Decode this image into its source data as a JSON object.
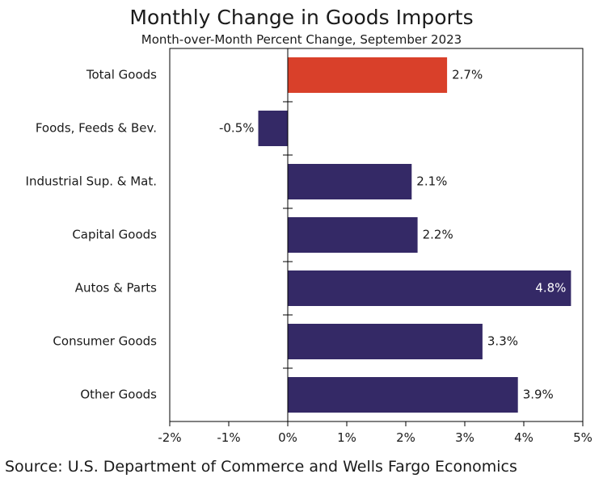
{
  "colors": {
    "primary": "#342966",
    "highlight": "#D9402A",
    "axis": "#000000"
  },
  "source": "Source: U.S. Department of Commerce and Wells Fargo Economics",
  "chart_data": {
    "type": "bar",
    "orientation": "horizontal",
    "title": "Monthly Change in Goods Imports",
    "subtitle": "Month-over-Month Percent Change, September 2023",
    "categories": [
      "Total Goods",
      "Foods, Feeds & Bev.",
      "Industrial Sup. & Mat.",
      "Capital Goods",
      "Autos & Parts",
      "Consumer Goods",
      "Other Goods"
    ],
    "values": [
      2.7,
      -0.5,
      2.1,
      2.2,
      4.8,
      3.3,
      3.9
    ],
    "value_labels": [
      "2.7%",
      "-0.5%",
      "2.1%",
      "2.2%",
      "4.8%",
      "3.3%",
      "3.9%"
    ],
    "highlight_index": 0,
    "xlim": [
      -2,
      5
    ],
    "xticks": [
      -2,
      -1,
      0,
      1,
      2,
      3,
      4,
      5
    ],
    "xtick_labels": [
      "-2%",
      "-1%",
      "0%",
      "1%",
      "2%",
      "3%",
      "4%",
      "5%"
    ],
    "xlabel": "",
    "ylabel": "",
    "grid": false
  }
}
